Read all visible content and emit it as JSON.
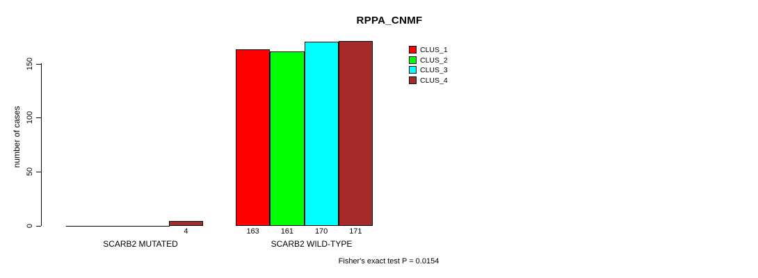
{
  "chart_data": {
    "type": "bar",
    "title": "RPPA_CNMF",
    "ylabel": "number of cases",
    "xlabel": "",
    "categories": [
      "SCARB2 MUTATED",
      "SCARB2 WILD-TYPE"
    ],
    "series": [
      {
        "name": "CLUS_1",
        "color": "#FF0000",
        "values": [
          0,
          163
        ]
      },
      {
        "name": "CLUS_2",
        "color": "#00FF00",
        "values": [
          0,
          161
        ]
      },
      {
        "name": "CLUS_3",
        "color": "#00FFFF",
        "values": [
          0,
          170
        ]
      },
      {
        "name": "CLUS_4",
        "color": "#A52A2A",
        "values": [
          4,
          171
        ]
      }
    ],
    "y_ticks": [
      0,
      50,
      100,
      150
    ],
    "ylim": [
      0,
      171
    ],
    "grid": false,
    "legend_position": "top-right",
    "value_labels_shown_for_positive_values": true,
    "annotation": "Fisher's exact test P = 0.0154"
  }
}
